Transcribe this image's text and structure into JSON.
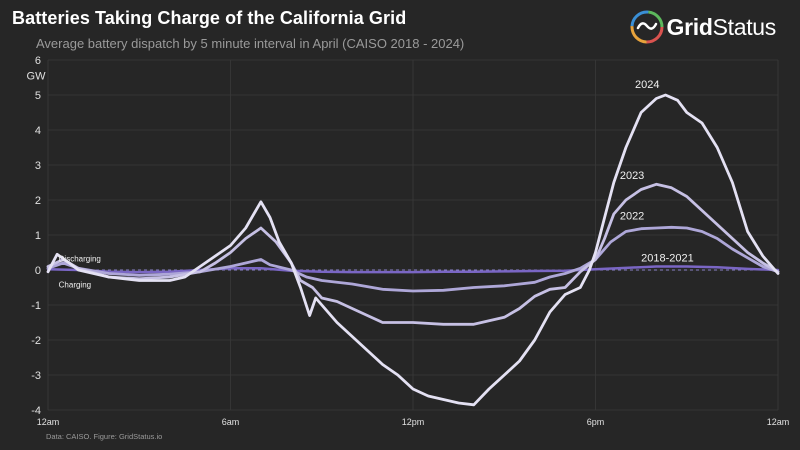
{
  "header": {
    "title": "Batteries Taking Charge of the California Grid",
    "subtitle": "Average battery dispatch by 5 minute interval in April (CAISO 2018 - 2024)"
  },
  "logo": {
    "text_bold": "Grid",
    "text_regular": "Status",
    "colors": [
      "#d9534f",
      "#e8a33c",
      "#3a8fd6",
      "#5cb85c"
    ]
  },
  "footer": {
    "source": "Data: CAISO. Figure: GridStatus.io"
  },
  "chart_data": {
    "type": "line",
    "title": "Batteries Taking Charge of the California Grid",
    "subtitle": "Average battery dispatch by 5 minute interval in April (CAISO 2018 - 2024)",
    "ylabel": "GW",
    "xlabel": "",
    "ylim": [
      -4,
      6
    ],
    "yticks": [
      "-4",
      "-3",
      "-2",
      "-1",
      "0",
      "1",
      "2",
      "3",
      "4",
      "5",
      "6"
    ],
    "xlim": [
      0,
      24
    ],
    "xticks": [
      {
        "hour": 0,
        "label": "12am"
      },
      {
        "hour": 6,
        "label": "6am"
      },
      {
        "hour": 12,
        "label": "12pm"
      },
      {
        "hour": 18,
        "label": "6pm"
      },
      {
        "hour": 24,
        "label": "12am"
      }
    ],
    "grid": true,
    "annotations": {
      "discharging": "Discharging",
      "charging": "Charging"
    },
    "series": [
      {
        "name": "2018-2021",
        "color": "#7a66c4",
        "label_at": [
          19.5,
          0.25
        ],
        "points": [
          [
            0,
            0.02
          ],
          [
            1,
            0.0
          ],
          [
            2,
            -0.05
          ],
          [
            3,
            -0.06
          ],
          [
            4,
            -0.05
          ],
          [
            5,
            0.0
          ],
          [
            6,
            0.05
          ],
          [
            7,
            0.05
          ],
          [
            8,
            -0.02
          ],
          [
            9,
            -0.05
          ],
          [
            10,
            -0.06
          ],
          [
            11,
            -0.06
          ],
          [
            12,
            -0.06
          ],
          [
            13,
            -0.05
          ],
          [
            14,
            -0.05
          ],
          [
            15,
            -0.04
          ],
          [
            16,
            -0.03
          ],
          [
            17,
            -0.02
          ],
          [
            18,
            0.02
          ],
          [
            19,
            0.06
          ],
          [
            20,
            0.1
          ],
          [
            21,
            0.1
          ],
          [
            22,
            0.08
          ],
          [
            23,
            0.03
          ],
          [
            24,
            0.0
          ]
        ]
      },
      {
        "name": "2022",
        "color": "#aea7d8",
        "label_at": [
          18.8,
          1.45
        ],
        "points": [
          [
            0,
            0.05
          ],
          [
            0.5,
            0.2
          ],
          [
            1,
            0.05
          ],
          [
            2,
            -0.1
          ],
          [
            3,
            -0.15
          ],
          [
            4,
            -0.12
          ],
          [
            5,
            -0.05
          ],
          [
            6,
            0.1
          ],
          [
            6.5,
            0.2
          ],
          [
            7,
            0.3
          ],
          [
            7.3,
            0.15
          ],
          [
            8,
            0.0
          ],
          [
            8.5,
            -0.2
          ],
          [
            9,
            -0.3
          ],
          [
            10,
            -0.4
          ],
          [
            11,
            -0.55
          ],
          [
            12,
            -0.6
          ],
          [
            13,
            -0.58
          ],
          [
            14,
            -0.5
          ],
          [
            15,
            -0.45
          ],
          [
            16,
            -0.35
          ],
          [
            16.5,
            -0.2
          ],
          [
            17,
            -0.1
          ],
          [
            17.5,
            0.05
          ],
          [
            18,
            0.3
          ],
          [
            18.5,
            0.8
          ],
          [
            19,
            1.1
          ],
          [
            19.5,
            1.18
          ],
          [
            20,
            1.2
          ],
          [
            20.5,
            1.22
          ],
          [
            21,
            1.2
          ],
          [
            21.5,
            1.1
          ],
          [
            22,
            0.9
          ],
          [
            22.5,
            0.6
          ],
          [
            23,
            0.35
          ],
          [
            23.5,
            0.1
          ],
          [
            24,
            -0.05
          ]
        ]
      },
      {
        "name": "2023",
        "color": "#c6c0e4",
        "label_at": [
          18.8,
          2.6
        ],
        "points": [
          [
            0,
            0.1
          ],
          [
            0.5,
            0.3
          ],
          [
            1,
            0.05
          ],
          [
            2,
            -0.2
          ],
          [
            3,
            -0.25
          ],
          [
            4,
            -0.2
          ],
          [
            5,
            -0.05
          ],
          [
            5.5,
            0.2
          ],
          [
            6,
            0.5
          ],
          [
            6.5,
            0.9
          ],
          [
            7,
            1.2
          ],
          [
            7.5,
            0.8
          ],
          [
            8,
            0.2
          ],
          [
            8.3,
            -0.3
          ],
          [
            8.7,
            -0.5
          ],
          [
            9,
            -0.8
          ],
          [
            9.5,
            -0.9
          ],
          [
            10,
            -1.1
          ],
          [
            10.5,
            -1.3
          ],
          [
            11,
            -1.5
          ],
          [
            12,
            -1.5
          ],
          [
            13,
            -1.55
          ],
          [
            14,
            -1.55
          ],
          [
            15,
            -1.35
          ],
          [
            15.5,
            -1.1
          ],
          [
            16,
            -0.75
          ],
          [
            16.5,
            -0.55
          ],
          [
            17,
            -0.5
          ],
          [
            17.5,
            -0.05
          ],
          [
            18,
            0.3
          ],
          [
            18.3,
            0.9
          ],
          [
            18.6,
            1.6
          ],
          [
            19,
            2.0
          ],
          [
            19.5,
            2.3
          ],
          [
            20,
            2.45
          ],
          [
            20.5,
            2.35
          ],
          [
            21,
            2.1
          ],
          [
            21.5,
            1.7
          ],
          [
            22,
            1.3
          ],
          [
            22.5,
            0.9
          ],
          [
            23,
            0.5
          ],
          [
            23.5,
            0.2
          ],
          [
            24,
            -0.05
          ]
        ]
      },
      {
        "name": "2024",
        "color": "#e4e1f3",
        "label_at": [
          19.3,
          5.2
        ],
        "points": [
          [
            0,
            -0.05
          ],
          [
            0.3,
            0.45
          ],
          [
            0.7,
            0.2
          ],
          [
            1,
            0.0
          ],
          [
            2,
            -0.2
          ],
          [
            3,
            -0.3
          ],
          [
            4,
            -0.3
          ],
          [
            4.5,
            -0.2
          ],
          [
            5,
            0.1
          ],
          [
            5.5,
            0.4
          ],
          [
            6,
            0.7
          ],
          [
            6.5,
            1.2
          ],
          [
            7,
            1.95
          ],
          [
            7.3,
            1.5
          ],
          [
            7.6,
            0.8
          ],
          [
            8,
            0.2
          ],
          [
            8.3,
            -0.5
          ],
          [
            8.6,
            -1.3
          ],
          [
            8.8,
            -0.8
          ],
          [
            9,
            -1.0
          ],
          [
            9.5,
            -1.5
          ],
          [
            10,
            -1.9
          ],
          [
            10.5,
            -2.3
          ],
          [
            11,
            -2.7
          ],
          [
            11.5,
            -3.0
          ],
          [
            12,
            -3.4
          ],
          [
            12.5,
            -3.6
          ],
          [
            13,
            -3.7
          ],
          [
            13.5,
            -3.8
          ],
          [
            14,
            -3.85
          ],
          [
            14.5,
            -3.4
          ],
          [
            15,
            -3.0
          ],
          [
            15.5,
            -2.6
          ],
          [
            16,
            -2.0
          ],
          [
            16.5,
            -1.2
          ],
          [
            17,
            -0.7
          ],
          [
            17.5,
            -0.5
          ],
          [
            17.8,
            0.0
          ],
          [
            18,
            0.5
          ],
          [
            18.3,
            1.5
          ],
          [
            18.6,
            2.5
          ],
          [
            19,
            3.5
          ],
          [
            19.5,
            4.5
          ],
          [
            20,
            4.9
          ],
          [
            20.3,
            5.0
          ],
          [
            20.7,
            4.85
          ],
          [
            21,
            4.5
          ],
          [
            21.5,
            4.2
          ],
          [
            22,
            3.5
          ],
          [
            22.5,
            2.5
          ],
          [
            23,
            1.1
          ],
          [
            23.5,
            0.4
          ],
          [
            24,
            -0.1
          ]
        ]
      }
    ]
  }
}
